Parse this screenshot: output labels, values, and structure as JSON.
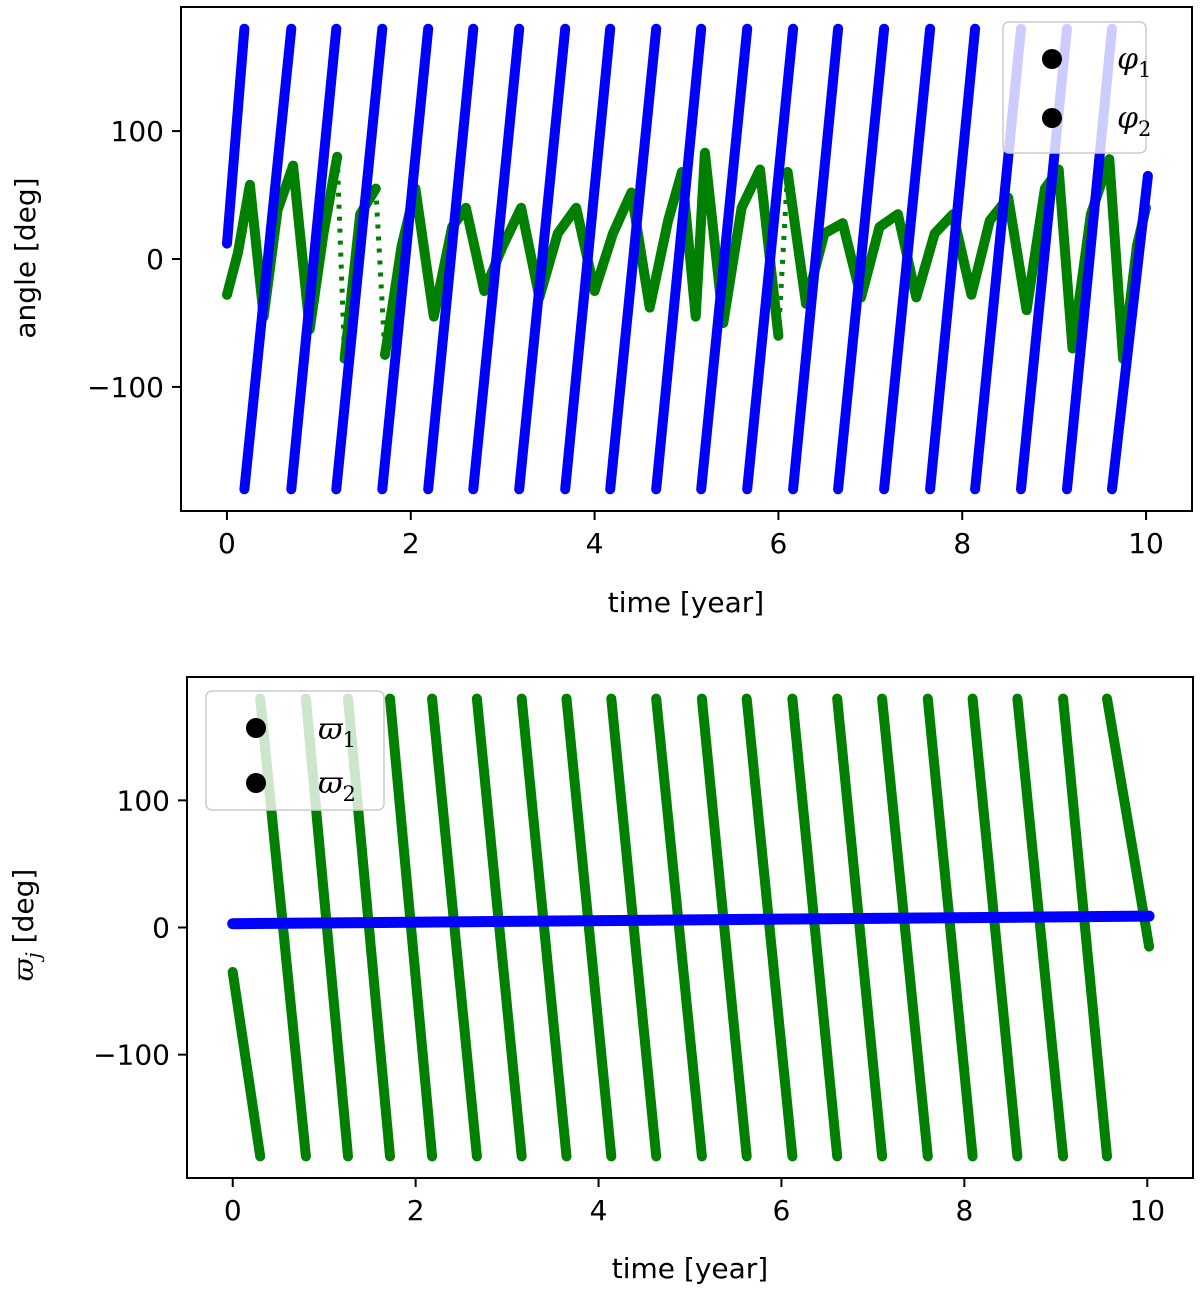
{
  "chart_data": [
    {
      "type": "scatter",
      "xlabel": "time [year]",
      "ylabel": "angle [deg]",
      "xlim": [
        -0.5,
        10.5
      ],
      "ylim": [
        -197,
        197
      ],
      "xticks": [
        0,
        2,
        4,
        6,
        8,
        10
      ],
      "yticks": [
        -100,
        0,
        100
      ],
      "xtick_labels": [
        "0",
        "2",
        "4",
        "6",
        "8",
        "10"
      ],
      "ytick_labels": [
        "−100",
        "0",
        "100"
      ],
      "legend_position": "top-right",
      "series": [
        {
          "name": "φ",
          "subscript": "1",
          "color": "#008000",
          "kind": "oscillating",
          "wrap_times": [
            1.28,
            1.72,
            6.1
          ],
          "points": [
            [
              0,
              -28
            ],
            [
              0.12,
              5
            ],
            [
              0.25,
              58
            ],
            [
              0.4,
              -45
            ],
            [
              0.55,
              38
            ],
            [
              0.72,
              73
            ],
            [
              0.9,
              -55
            ],
            [
              1.05,
              20
            ],
            [
              1.2,
              80
            ],
            [
              1.28,
              -78
            ],
            [
              1.45,
              35
            ],
            [
              1.62,
              55
            ],
            [
              1.72,
              -75
            ],
            [
              1.9,
              10
            ],
            [
              2.05,
              55
            ],
            [
              2.25,
              -45
            ],
            [
              2.45,
              25
            ],
            [
              2.6,
              40
            ],
            [
              2.8,
              -25
            ],
            [
              3.0,
              10
            ],
            [
              3.2,
              40
            ],
            [
              3.4,
              -30
            ],
            [
              3.6,
              20
            ],
            [
              3.8,
              40
            ],
            [
              4.0,
              -25
            ],
            [
              4.2,
              20
            ],
            [
              4.4,
              52
            ],
            [
              4.6,
              -38
            ],
            [
              4.8,
              30
            ],
            [
              4.95,
              68
            ],
            [
              5.1,
              -45
            ],
            [
              5.2,
              83
            ],
            [
              5.4,
              -50
            ],
            [
              5.6,
              40
            ],
            [
              5.8,
              70
            ],
            [
              6.0,
              -60
            ],
            [
              6.1,
              68
            ],
            [
              6.3,
              -35
            ],
            [
              6.5,
              20
            ],
            [
              6.7,
              28
            ],
            [
              6.9,
              -30
            ],
            [
              7.1,
              25
            ],
            [
              7.3,
              35
            ],
            [
              7.5,
              -30
            ],
            [
              7.7,
              20
            ],
            [
              7.9,
              35
            ],
            [
              8.1,
              -28
            ],
            [
              8.3,
              30
            ],
            [
              8.5,
              48
            ],
            [
              8.7,
              -40
            ],
            [
              8.9,
              55
            ],
            [
              9.05,
              70
            ],
            [
              9.2,
              -70
            ],
            [
              9.4,
              35
            ],
            [
              9.6,
              78
            ],
            [
              9.75,
              -78
            ],
            [
              9.9,
              10
            ],
            [
              10.0,
              40
            ]
          ]
        },
        {
          "name": "φ",
          "subscript": "2",
          "color": "#0000ff",
          "kind": "sawtooth",
          "start_time": 0,
          "start_value": 12,
          "end_time": 10.02,
          "end_value": 65,
          "wrap_times": [
            0.19,
            0.7,
            1.19,
            1.69,
            2.19,
            2.68,
            3.18,
            3.68,
            4.17,
            4.67,
            5.16,
            5.66,
            6.16,
            6.65,
            7.15,
            7.65,
            8.14,
            8.64,
            9.14,
            9.63
          ]
        }
      ]
    },
    {
      "type": "scatter",
      "xlabel": "time [year]",
      "ylabel": "ϖ",
      "ylabel_subscript": "j",
      "ylabel_suffix": " [deg]",
      "xlim": [
        -0.5,
        10.5
      ],
      "ylim": [
        -197,
        197
      ],
      "xticks": [
        0,
        2,
        4,
        6,
        8,
        10
      ],
      "yticks": [
        -100,
        0,
        100
      ],
      "xtick_labels": [
        "0",
        "2",
        "4",
        "6",
        "8",
        "10"
      ],
      "ytick_labels": [
        "−100",
        "0",
        "100"
      ],
      "legend_position": "top-left",
      "series": [
        {
          "name": "ϖ",
          "subscript": "1",
          "color": "#008000",
          "kind": "sawtooth-descending",
          "start_time": 0,
          "start_value": -35,
          "end_time": 10.02,
          "end_value": -15,
          "wrap_times": [
            0.3,
            0.8,
            1.26,
            1.72,
            2.18,
            2.67,
            3.16,
            3.65,
            4.14,
            4.63,
            5.13,
            5.62,
            6.12,
            6.61,
            7.1,
            7.6,
            8.09,
            8.58,
            9.08,
            9.56
          ]
        },
        {
          "name": "ϖ",
          "subscript": "2",
          "color": "#0000ff",
          "kind": "linear",
          "points": [
            [
              0,
              3
            ],
            [
              10.02,
              9
            ]
          ]
        }
      ]
    }
  ]
}
